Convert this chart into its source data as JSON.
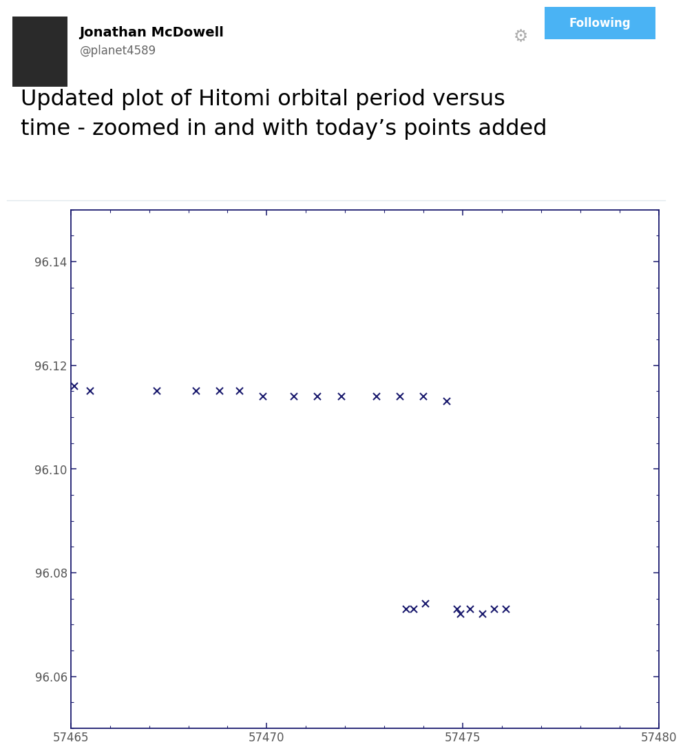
{
  "tweet_user": "Jonathan McDowell",
  "tweet_handle": "@planet4589",
  "tweet_text_line1": "Updated plot of Hitomi orbital period versus",
  "tweet_text_line2": "time - zoomed in and with today’s points added",
  "upper_cluster_x": [
    57465.1,
    57465.5,
    57467.2,
    57468.2,
    57468.8,
    57469.3,
    57469.9,
    57470.7,
    57471.3,
    57471.9,
    57472.8,
    57473.4,
    57474.0,
    57474.6
  ],
  "upper_cluster_y": [
    96.116,
    96.115,
    96.115,
    96.115,
    96.115,
    96.115,
    96.114,
    96.114,
    96.114,
    96.114,
    96.114,
    96.114,
    96.114,
    96.113
  ],
  "lower_cluster_x": [
    57473.55,
    57473.75,
    57474.05,
    57474.85,
    57474.95,
    57475.2,
    57475.5,
    57475.8,
    57476.1
  ],
  "lower_cluster_y": [
    96.073,
    96.073,
    96.074,
    96.073,
    96.072,
    96.073,
    96.072,
    96.073,
    96.073
  ],
  "xlim": [
    57465,
    57480
  ],
  "ylim": [
    96.05,
    96.15
  ],
  "yticks": [
    96.06,
    96.08,
    96.1,
    96.12,
    96.14
  ],
  "xticks": [
    57465,
    57470,
    57475,
    57480
  ],
  "marker_color": "#1a1a6e",
  "background_color": "#ffffff",
  "border_color": "#1a1a6e",
  "label_color": "#555555",
  "following_bg": "#4ab3f4",
  "tweet_bg": "#ffffff",
  "separator_color": "#e1e8ed",
  "username_color": "#000000",
  "handle_color": "#666666",
  "tweet_text_color": "#000000",
  "gear_color": "#aaaaaa",
  "fig_width": 9.76,
  "fig_height": 11.0,
  "dpi": 100
}
